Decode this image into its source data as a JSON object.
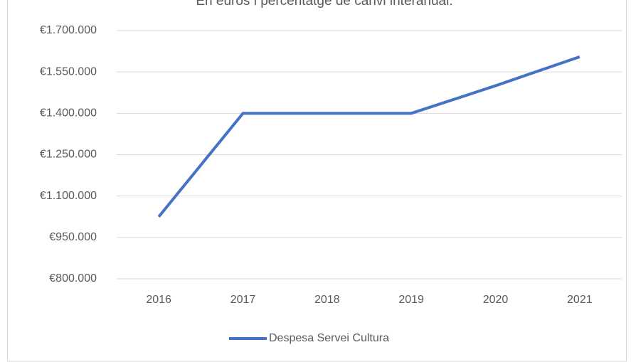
{
  "chart_data": {
    "type": "line",
    "title": "En euros i percentatge de canvi interanual.",
    "categories": [
      "2016",
      "2017",
      "2018",
      "2019",
      "2020",
      "2021"
    ],
    "series": [
      {
        "name": "Despesa Servei Cultura",
        "color": "#4472c4",
        "values": [
          1025000,
          1400000,
          1400000,
          1400000,
          1500000,
          1605000
        ]
      }
    ],
    "ylim": [
      800000,
      1700000
    ],
    "yticks": [
      {
        "value": 800000,
        "label": "€800.000"
      },
      {
        "value": 950000,
        "label": "€950.000"
      },
      {
        "value": 1100000,
        "label": "€1.100.000"
      },
      {
        "value": 1250000,
        "label": "€1.250.000"
      },
      {
        "value": 1400000,
        "label": "€1.400.000"
      },
      {
        "value": 1550000,
        "label": "€1.550.000"
      },
      {
        "value": 1700000,
        "label": "€1.700.000"
      }
    ],
    "grid": true,
    "legend": "bottom"
  }
}
